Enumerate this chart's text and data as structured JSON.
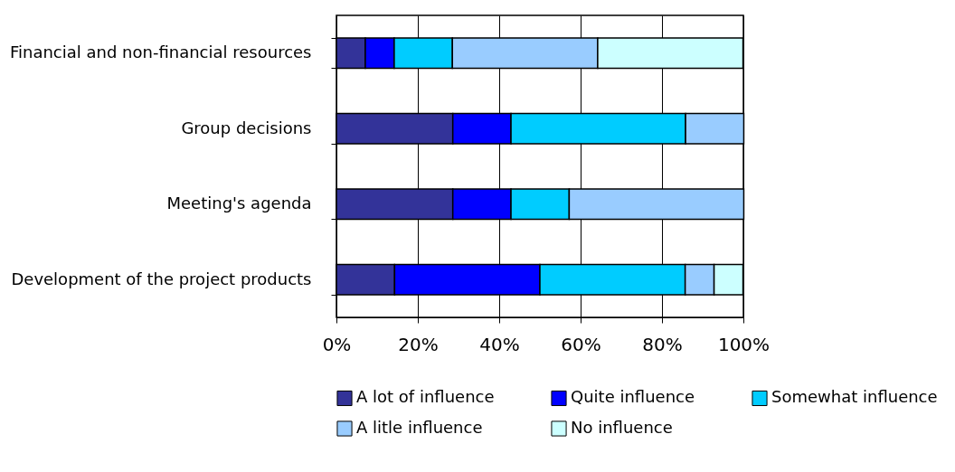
{
  "chart_data": {
    "type": "bar",
    "orientation": "horizontal",
    "stacked": true,
    "categories": [
      "Financial and non-financial resources",
      "Group decisions",
      "Meeting's agenda",
      "Development of the project products"
    ],
    "series": [
      {
        "name": "A lot of influence",
        "color": "#333399",
        "values": [
          7.1,
          28.6,
          28.6,
          14.3
        ]
      },
      {
        "name": "Quite influence",
        "color": "#0000ff",
        "values": [
          7.1,
          14.3,
          14.3,
          35.7
        ]
      },
      {
        "name": "Somewhat influence",
        "color": "#00ccff",
        "values": [
          14.3,
          42.9,
          14.3,
          35.7
        ]
      },
      {
        "name": "A litle influence",
        "color": "#99ccff",
        "values": [
          35.7,
          14.3,
          42.9,
          7.1
        ]
      },
      {
        "name": "No influence",
        "color": "#ccffff",
        "values": [
          35.7,
          0,
          0,
          7.1
        ]
      }
    ],
    "xlim": [
      0,
      100
    ],
    "xticks": [
      {
        "value": 0,
        "label": "0%"
      },
      {
        "value": 20,
        "label": "20%"
      },
      {
        "value": 40,
        "label": "40%"
      },
      {
        "value": 60,
        "label": "60%"
      },
      {
        "value": 80,
        "label": "80%"
      },
      {
        "value": 100,
        "label": "100%"
      }
    ],
    "grid": "x",
    "legend": "bottom"
  }
}
